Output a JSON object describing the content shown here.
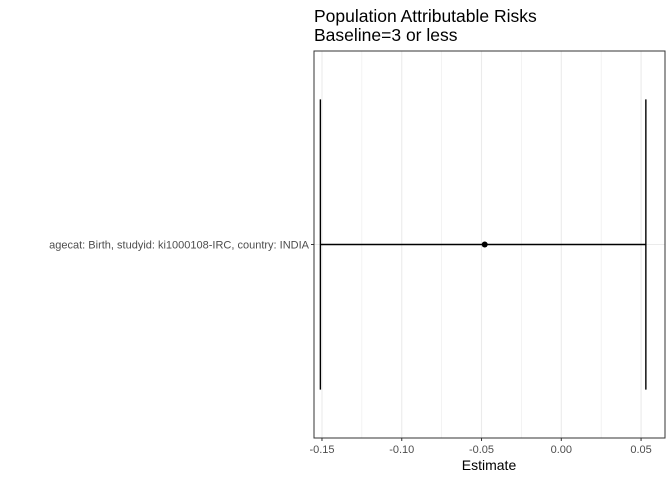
{
  "chart_data": {
    "type": "forest",
    "title": "Population Attributable Risks",
    "subtitle": "Baseline=3 or less",
    "xlabel": "Estimate",
    "ylabel": "",
    "xlim": [
      -0.155,
      0.065
    ],
    "xticks": [
      {
        "value": -0.15,
        "label": "-0.15"
      },
      {
        "value": -0.1,
        "label": "-0.10"
      },
      {
        "value": -0.05,
        "label": "-0.05"
      },
      {
        "value": 0.0,
        "label": "0.00"
      },
      {
        "value": 0.05,
        "label": "0.05"
      }
    ],
    "grid": true,
    "legend": "none",
    "rows": [
      {
        "label": "agecat: Birth, studyid: ki1000108-IRC, country: INDIA",
        "estimate": -0.048,
        "lower": -0.151,
        "upper": 0.053
      }
    ],
    "colors": {
      "panel_border": "#333333",
      "grid": "#ebebeb",
      "mark": "#000000",
      "tick_text": "#4d4d4d"
    }
  }
}
